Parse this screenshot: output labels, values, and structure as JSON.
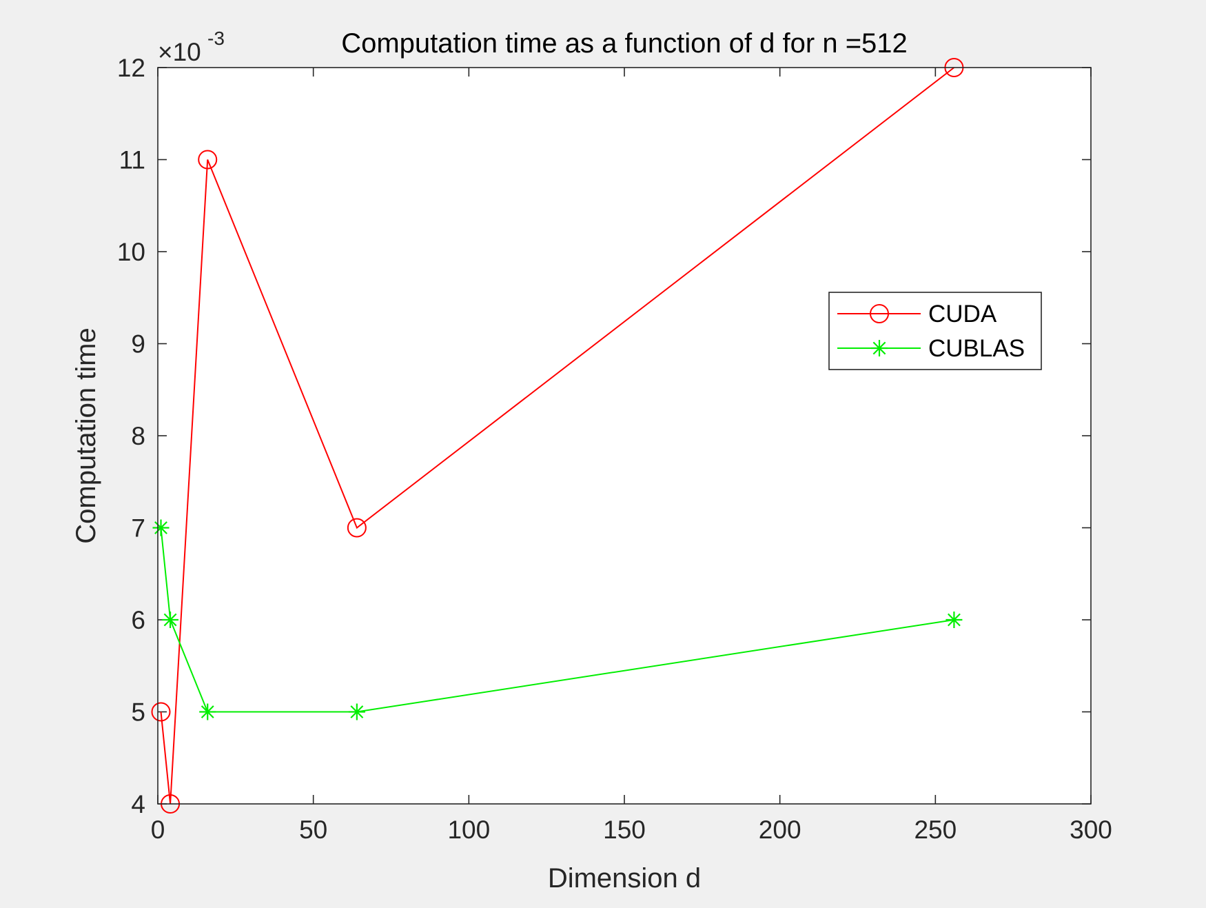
{
  "chart_data": {
    "type": "line",
    "title": "Computation time as a function of d for n =512",
    "xlabel": "Dimension d",
    "ylabel": "Computation time",
    "xlim": [
      0,
      300
    ],
    "ylim": [
      4,
      12
    ],
    "xticks": [
      0,
      50,
      100,
      150,
      200,
      250,
      300
    ],
    "yticks": [
      4,
      5,
      6,
      7,
      8,
      9,
      10,
      11,
      12
    ],
    "y_exponent": {
      "base": "×10",
      "power": "-3"
    },
    "grid": false,
    "legend_position": "right, upper-middle",
    "series": [
      {
        "name": "CUDA",
        "color": "#ff0000",
        "marker": "circle",
        "x": [
          1,
          4,
          16,
          64,
          256
        ],
        "y": [
          5,
          4,
          11,
          7,
          12
        ]
      },
      {
        "name": "CUBLAS",
        "color": "#00ee00",
        "marker": "asterisk",
        "x": [
          1,
          4,
          16,
          64,
          256
        ],
        "y": [
          7,
          6,
          5,
          5,
          6
        ]
      }
    ]
  }
}
